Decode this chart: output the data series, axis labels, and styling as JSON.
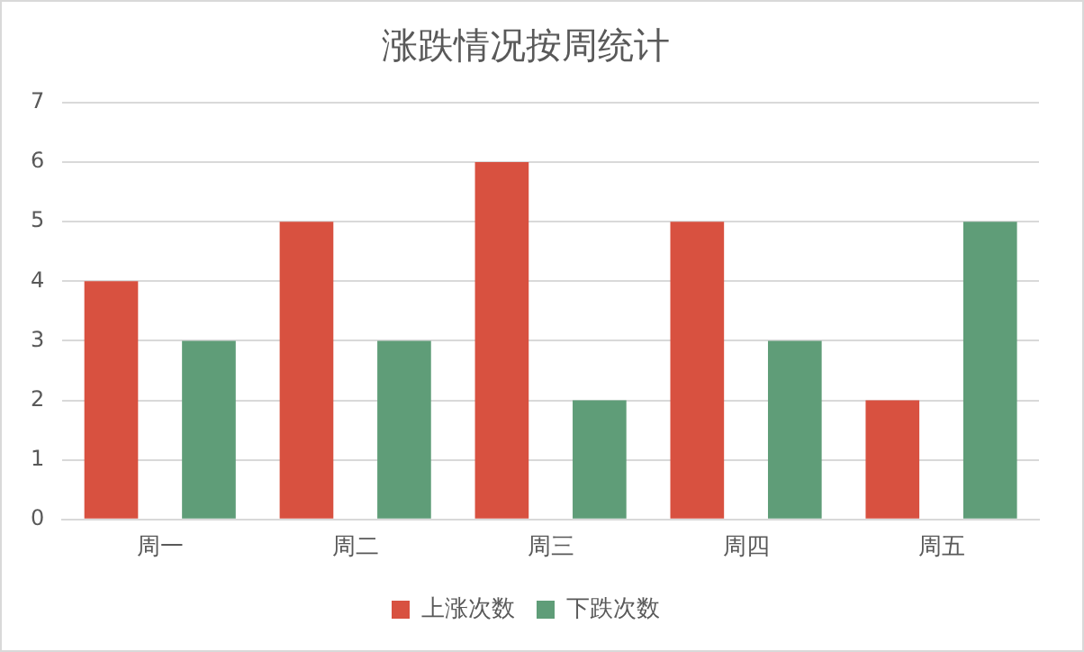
{
  "chart_data": {
    "type": "bar",
    "title": "涨跌情况按周统计",
    "categories": [
      "周一",
      "周二",
      "周三",
      "周四",
      "周五"
    ],
    "series": [
      {
        "name": "上涨次数",
        "color": "#d85140",
        "values": [
          4,
          5,
          6,
          5,
          2
        ]
      },
      {
        "name": "下跌次数",
        "color": "#5f9d78",
        "values": [
          3,
          3,
          2,
          3,
          5
        ]
      }
    ],
    "ylim": [
      0,
      7
    ],
    "yticks": [
      0,
      1,
      2,
      3,
      4,
      5,
      6,
      7
    ],
    "grid": "y",
    "legend": "bottom"
  }
}
